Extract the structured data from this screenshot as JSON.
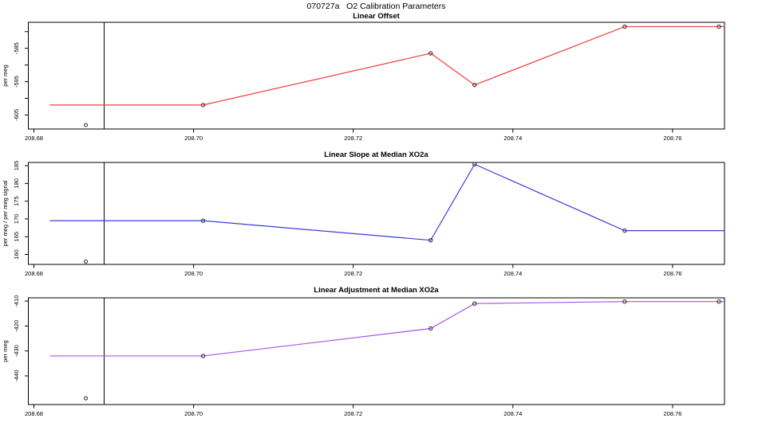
{
  "page_title": "070727a   O2 Calibration Parameters",
  "vline_x": 208.6888,
  "xticks": [
    {
      "v": 208.68,
      "label": "208.68"
    },
    {
      "v": 208.7,
      "label": "208.70"
    },
    {
      "v": 208.72,
      "label": "208.72"
    },
    {
      "v": 208.74,
      "label": "208.74"
    },
    {
      "v": 208.76,
      "label": "208.76"
    }
  ],
  "colors": {
    "offset_line": "#f23b3b",
    "slope_line": "#3c3cd8",
    "adjustment_line": "#a855e8",
    "marker_stroke": "#2b2b2b",
    "axis": "#000000"
  },
  "chart_data": [
    {
      "type": "line",
      "title": "Linear Offset",
      "ylabel": "per meg",
      "color": "#f23b3b",
      "xlim": [
        208.6793,
        208.7665
      ],
      "ylim": [
        -609.2,
        -577.2
      ],
      "yticks": [
        {
          "v": -580,
          "label": ""
        },
        {
          "v": -585,
          "label": "-585"
        },
        {
          "v": -590,
          "label": ""
        },
        {
          "v": -595,
          "label": "-595"
        },
        {
          "v": -600,
          "label": ""
        },
        {
          "v": -605,
          "label": "-605"
        }
      ],
      "line": [
        [
          208.682,
          -602
        ],
        [
          208.7012,
          -602
        ],
        [
          208.7297,
          -586.5
        ],
        [
          208.7352,
          -596
        ],
        [
          208.754,
          -578.5
        ],
        [
          208.7658,
          -578.5
        ],
        [
          208.7665,
          -578.5
        ]
      ],
      "markers": [
        [
          208.7012,
          -602
        ],
        [
          208.7297,
          -586.5
        ],
        [
          208.7352,
          -596
        ],
        [
          208.754,
          -578.5
        ],
        [
          208.7658,
          -578.5
        ]
      ],
      "outlier": [
        208.6865,
        -608
      ]
    },
    {
      "type": "line",
      "title": "Linear Slope at Median XO2a",
      "ylabel": "per meg / per meg signal",
      "color": "#3c3cd8",
      "xlim": [
        208.6793,
        208.7665
      ],
      "ylim": [
        157.2,
        185.9
      ],
      "yticks": [
        {
          "v": 160,
          "label": "160"
        },
        {
          "v": 165,
          "label": "165"
        },
        {
          "v": 170,
          "label": "170"
        },
        {
          "v": 175,
          "label": "175"
        },
        {
          "v": 180,
          "label": "180"
        },
        {
          "v": 185,
          "label": "185"
        }
      ],
      "line": [
        [
          208.682,
          169.5
        ],
        [
          208.7012,
          169.5
        ],
        [
          208.7297,
          164
        ],
        [
          208.7352,
          185.4
        ],
        [
          208.754,
          166.7
        ],
        [
          208.7665,
          166.7
        ]
      ],
      "markers": [
        [
          208.7012,
          169.5
        ],
        [
          208.7297,
          164
        ],
        [
          208.7352,
          185.4
        ],
        [
          208.754,
          166.7
        ]
      ],
      "outlier": [
        208.6865,
        158
      ]
    },
    {
      "type": "line",
      "title": "Linear Adjustment at Median XO2a",
      "ylabel": "per meg",
      "color": "#a855e8",
      "xlim": [
        208.6793,
        208.7665
      ],
      "ylim": [
        -451.5,
        -408.7
      ],
      "yticks": [
        {
          "v": -440,
          "label": "-440"
        },
        {
          "v": -430,
          "label": "-430"
        },
        {
          "v": -420,
          "label": "-420"
        },
        {
          "v": -410,
          "label": "-410"
        }
      ],
      "line": [
        [
          208.682,
          -432
        ],
        [
          208.7012,
          -432
        ],
        [
          208.7297,
          -421
        ],
        [
          208.7352,
          -411
        ],
        [
          208.754,
          -410.2
        ],
        [
          208.7658,
          -410.2
        ],
        [
          208.7665,
          -410.2
        ]
      ],
      "markers": [
        [
          208.7012,
          -432
        ],
        [
          208.7297,
          -421
        ],
        [
          208.7352,
          -411
        ],
        [
          208.754,
          -410.2
        ],
        [
          208.7658,
          -410.2
        ]
      ],
      "outlier": [
        208.6865,
        -449
      ]
    }
  ]
}
